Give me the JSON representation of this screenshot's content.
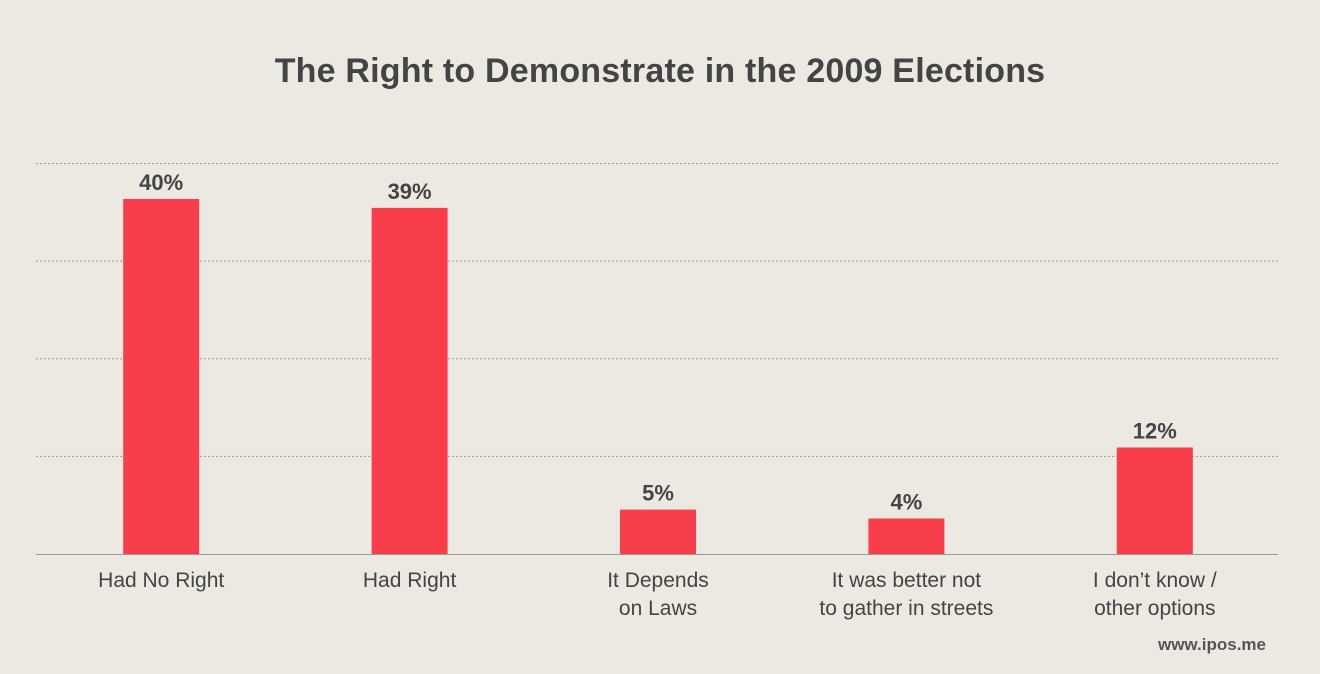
{
  "chart_data": {
    "type": "bar",
    "title": "The Right to Demonstrate in the 2009 Elections",
    "categories": [
      [
        "Had No Right"
      ],
      [
        "Had Right"
      ],
      [
        "It Depends",
        "on Laws"
      ],
      [
        "It was better not",
        "to gather in streets"
      ],
      [
        "I don’t know /",
        "other options"
      ]
    ],
    "values": [
      40,
      39,
      5,
      4,
      12
    ],
    "value_labels": [
      "40%",
      "39%",
      "5%",
      "4%",
      "12%"
    ],
    "ylim": [
      0,
      44
    ],
    "grid": true,
    "colors": {
      "bar": "#f73e4a",
      "label": "#444444",
      "grid": "#9a9a9a",
      "axis": "#9a9a9a"
    }
  },
  "footer": {
    "source": "www.ipos.me"
  }
}
